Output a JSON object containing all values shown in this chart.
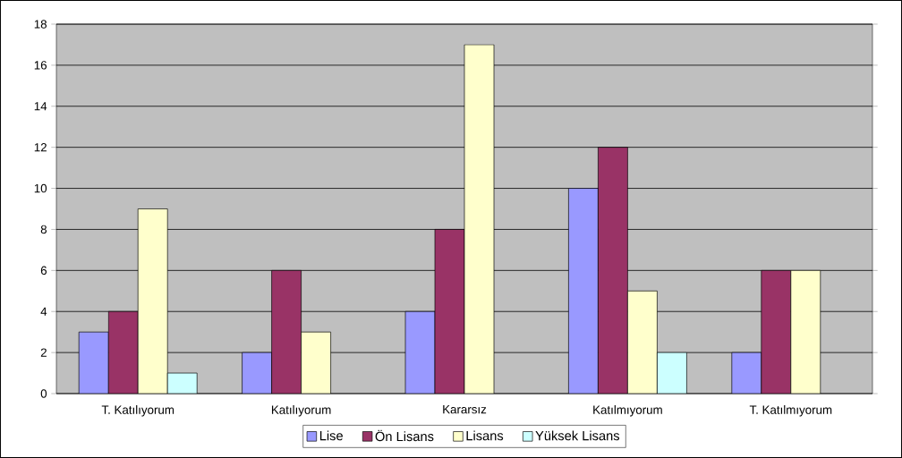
{
  "chart_data": {
    "type": "bar",
    "categories": [
      "T. Katılıyorum",
      "Katılıyorum",
      "Kararsız",
      "Katılmıyorum",
      "T. Katılmıyorum"
    ],
    "series": [
      {
        "name": "Lise",
        "color": "#9999ff",
        "values": [
          3,
          2,
          4,
          10,
          2
        ]
      },
      {
        "name": "Ön Lisans",
        "color": "#993366",
        "values": [
          4,
          6,
          8,
          12,
          6
        ]
      },
      {
        "name": "Lisans",
        "color": "#ffffcc",
        "values": [
          9,
          3,
          17,
          5,
          6
        ]
      },
      {
        "name": "Yüksek Lisans",
        "color": "#ccffff",
        "values": [
          1,
          null,
          null,
          2,
          null
        ]
      }
    ],
    "ylim": [
      0,
      18
    ],
    "yticks": [
      0,
      2,
      4,
      6,
      8,
      10,
      12,
      14,
      16,
      18
    ],
    "grid": "y",
    "legend": "bottom"
  }
}
